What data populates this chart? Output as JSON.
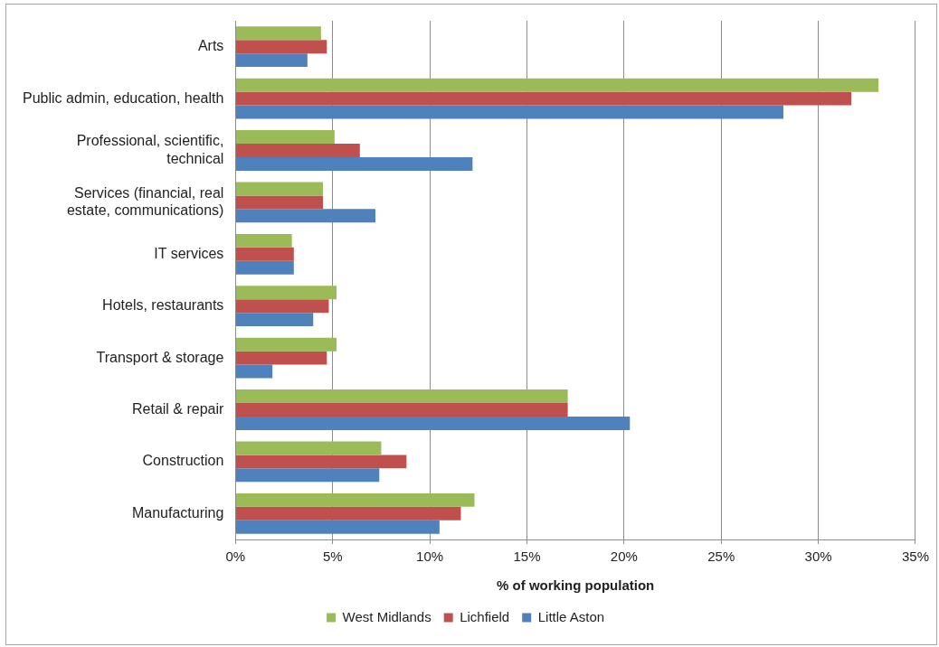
{
  "chart_data": {
    "type": "bar",
    "orientation": "horizontal",
    "xlabel": "% of working population",
    "categories": [
      "Arts",
      "Public admin, education, health",
      "Professional, scientific, technical",
      "Services (financial, real estate, communications)",
      "IT services",
      "Hotels, restaurants",
      "Transport & storage",
      "Retail & repair",
      "Construction",
      "Manufacturing"
    ],
    "series": [
      {
        "name": "West Midlands",
        "color": "#9bbb59",
        "values": [
          4.4,
          33.1,
          5.1,
          4.5,
          2.9,
          5.2,
          5.2,
          17.1,
          7.5,
          12.3
        ]
      },
      {
        "name": "Lichfield",
        "color": "#c0504d",
        "values": [
          4.7,
          31.7,
          6.4,
          4.5,
          3.0,
          4.8,
          4.7,
          17.1,
          8.8,
          11.6
        ]
      },
      {
        "name": "Little Aston",
        "color": "#4f81bd",
        "values": [
          3.7,
          28.2,
          12.2,
          7.2,
          3.0,
          4.0,
          1.9,
          20.3,
          7.4,
          10.5
        ]
      }
    ],
    "xlim": [
      0,
      35
    ],
    "xticks": [
      {
        "value": 0,
        "label": "0%"
      },
      {
        "value": 5,
        "label": "5%"
      },
      {
        "value": 10,
        "label": "10%"
      },
      {
        "value": 15,
        "label": "15%"
      },
      {
        "value": 20,
        "label": "20%"
      },
      {
        "value": 25,
        "label": "25%"
      },
      {
        "value": 30,
        "label": "30%"
      },
      {
        "value": 35,
        "label": "35%"
      }
    ],
    "grid": "x",
    "legend": "bottom"
  }
}
